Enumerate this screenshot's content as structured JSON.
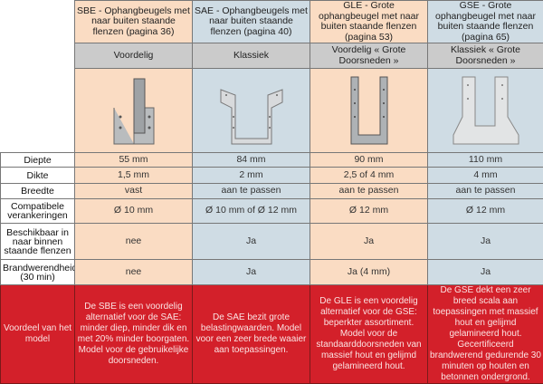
{
  "columns": [
    {
      "title": "SBE - Ophangbeugels met naar buiten staande flenzen (pagina 36)",
      "type": "Voordelig",
      "image": "SBE hanger bracket"
    },
    {
      "title": "SAE - Ophangbeugels met naar buiten staande flenzen (pagina 40)",
      "type": "Klassiek",
      "image": "SAE hanger bracket"
    },
    {
      "title": "GLE - Grote ophangbeugel met naar buiten staande flenzen (pagina 53)",
      "type": "Voordelig « Grote Doorsneden »",
      "image": "GLE hanger bracket"
    },
    {
      "title": "GSE - Grote ophangbeugel met naar buiten staande flenzen (pagina 65)",
      "type": "Klassiek « Grote Doorsneden »",
      "image": "GSE hanger bracket"
    }
  ],
  "rows": [
    {
      "label": "Diepte",
      "values": [
        "55 mm",
        "84 mm",
        "90 mm",
        "110 mm"
      ]
    },
    {
      "label": "Dikte",
      "values": [
        "1,5 mm",
        "2 mm",
        "2,5 of 4 mm",
        "4 mm"
      ]
    },
    {
      "label": "Breedte",
      "values": [
        "vast",
        "aan te passen",
        "aan te passen",
        "aan te passen"
      ]
    },
    {
      "label": "Compatibele verankeringen",
      "values": [
        "Ø 10 mm",
        "Ø 10 mm of Ø 12 mm",
        "Ø 12 mm",
        "Ø 12 mm"
      ]
    },
    {
      "label": "Beschikbaar in naar binnen staande flenzen",
      "values": [
        "nee",
        "Ja",
        "Ja",
        "Ja"
      ]
    },
    {
      "label": "Brandwerendheid (30 min)",
      "values": [
        "nee",
        "Ja",
        "Ja (4 mm)",
        "Ja"
      ]
    }
  ],
  "advantage": {
    "label": "Voordeel van het model",
    "values": [
      "De SBE is een voordelig alternatief voor de SAE: minder diep, minder dik en met 20% minder boorgaten. Model voor de gebruikelijke doorsneden.",
      "De SAE bezit grote belastingwaarden. Model voor een zeer brede waaier aan toepassingen.",
      "De GLE is een voordelig alternatief voor de GSE: beperkter assortiment. Model voor de standaarddoorsneden van massief hout en gelijmd gelamineerd hout.",
      "De GSE dekt een zeer breed scala aan toepassingen met massief hout en gelijmd gelamineerd hout. Gecertificeerd brandwerend gedurende 30 minuten op houten en betonnen ondergrond."
    ]
  },
  "colors": {
    "peach": "#fadcc3",
    "blue": "#cfdce4",
    "gray": "#cbcbcb",
    "red": "#d3202a"
  }
}
